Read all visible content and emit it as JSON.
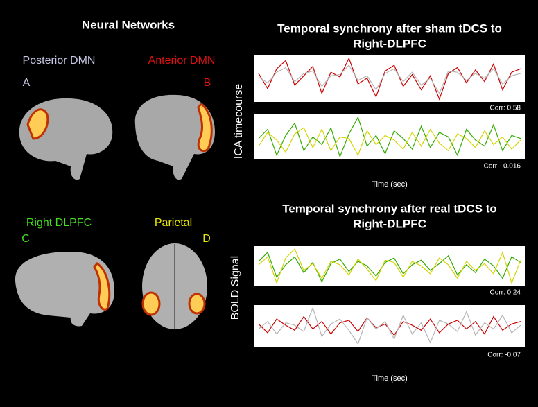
{
  "networks_title": "Neural Networks",
  "networks": [
    {
      "label": "Posterior DMN",
      "letter": "A",
      "color": "#c8c8e6"
    },
    {
      "label": "Anterior DMN",
      "letter": "B",
      "color": "#e01010"
    },
    {
      "label": "Right DLPFC",
      "letter": "C",
      "color": "#44dd22"
    },
    {
      "label": "Parietal",
      "letter": "D",
      "color": "#e8e800"
    }
  ],
  "sync": [
    {
      "title_lines": [
        "Temporal synchrony after sham tDCS to",
        "Right-DLPFC"
      ],
      "y_label": "ICA  timecourse",
      "x_label": "Time (sec)",
      "plots": [
        {
          "corr_label": "Corr: 0.58",
          "series": [
            {
              "color": "#cc0000",
              "values": [
                0.5,
                -0.8,
                0.9,
                1.6,
                -0.5,
                0.3,
                1.1,
                -1.2,
                0.6,
                0.2,
                1.8,
                -0.4,
                0.1,
                -1.5,
                0.7,
                1.2,
                -0.6,
                0.4,
                -0.9,
                0.3,
                -1.7,
                0.5,
                1.0,
                -0.3,
                0.8,
                -0.2,
                1.3,
                -0.9,
                0.6,
                0.9
              ]
            },
            {
              "color": "#b4b4b4",
              "values": [
                0.2,
                -0.3,
                0.6,
                1.0,
                -0.2,
                0.5,
                0.7,
                -0.6,
                0.3,
                0.4,
                1.2,
                -0.1,
                0.3,
                -0.9,
                0.5,
                0.9,
                -0.2,
                0.6,
                -0.5,
                0.1,
                -1.2,
                0.7,
                0.6,
                -0.1,
                0.5,
                0.1,
                0.9,
                -0.4,
                0.3,
                0.5
              ]
            }
          ]
        },
        {
          "corr_label": "Corr: -0.016",
          "series": [
            {
              "color": "#33aa00",
              "values": [
                0.2,
                0.8,
                -0.9,
                0.4,
                1.2,
                -0.6,
                0.3,
                -0.2,
                0.9,
                -1.0,
                0.5,
                1.6,
                -0.3,
                0.4,
                -0.8,
                0.7,
                0.2,
                -0.5,
                1.0,
                -0.4,
                0.6,
                0.3,
                -0.9,
                0.8,
                0.1,
                -0.3,
                1.1,
                -0.6,
                0.4,
                0.2
              ]
            },
            {
              "color": "#d4d400",
              "values": [
                -0.3,
                0.6,
                0.1,
                -0.7,
                0.5,
                0.9,
                -0.4,
                0.8,
                -0.6,
                0.3,
                0.2,
                -0.9,
                0.7,
                -0.2,
                0.4,
                0.1,
                -0.5,
                0.6,
                -0.3,
                0.8,
                -0.1,
                -0.6,
                0.5,
                0.2,
                -0.4,
                0.7,
                -0.2,
                0.3,
                -0.5,
                0.1
              ]
            }
          ]
        }
      ]
    },
    {
      "title_lines": [
        "Temporal synchrony after real tDCS to",
        "Right-DLPFC"
      ],
      "y_label": "BOLD Signal",
      "x_label": "Time (sec)",
      "plots": [
        {
          "corr_label": "Corr: 0.24",
          "series": [
            {
              "color": "#33aa00",
              "values": [
                0.6,
                1.4,
                -0.8,
                0.3,
                1.0,
                -0.4,
                0.5,
                -1.2,
                0.4,
                0.8,
                -0.3,
                0.6,
                0.2,
                -0.7,
                0.5,
                0.9,
                -0.5,
                0.3,
                0.7,
                -0.2,
                0.4,
                1.1,
                -0.6,
                0.3,
                -0.4,
                0.8,
                0.2,
                -0.9,
                1.0,
                0.5
              ]
            },
            {
              "color": "#d4d400",
              "values": [
                0.3,
                1.0,
                -1.3,
                0.9,
                1.7,
                -0.2,
                0.4,
                -0.9,
                0.6,
                0.3,
                -0.6,
                0.8,
                -0.1,
                -1.1,
                0.7,
                0.5,
                -0.8,
                0.6,
                0.2,
                -0.5,
                0.9,
                0.3,
                -0.9,
                0.6,
                -0.2,
                0.4,
                -0.5,
                1.4,
                -1.3,
                0.7
              ]
            }
          ]
        },
        {
          "corr_label": "Corr: -0.07",
          "series": [
            {
              "color": "#cc0000",
              "values": [
                0.2,
                -0.5,
                0.6,
                0.1,
                -0.3,
                0.8,
                -0.2,
                0.4,
                -0.6,
                0.3,
                0.5,
                -0.4,
                0.7,
                -0.1,
                0.2,
                -0.7,
                0.4,
                0.1,
                -0.3,
                0.6,
                -0.5,
                0.2,
                0.5,
                -0.2,
                0.4,
                -0.6,
                0.8,
                -0.3,
                0.2,
                0.4
              ]
            },
            {
              "color": "#b4b4b4",
              "values": [
                -0.2,
                0.4,
                -0.6,
                0.3,
                0.1,
                -0.4,
                1.5,
                -0.8,
                0.2,
                0.6,
                -0.3,
                -1.4,
                0.7,
                -0.2,
                0.4,
                -1.0,
                0.9,
                -0.6,
                0.3,
                -1.3,
                0.5,
                0.2,
                -0.4,
                1.2,
                -0.7,
                0.3,
                -0.2,
                0.9,
                -0.5,
                0.1
              ]
            }
          ]
        }
      ]
    }
  ]
}
